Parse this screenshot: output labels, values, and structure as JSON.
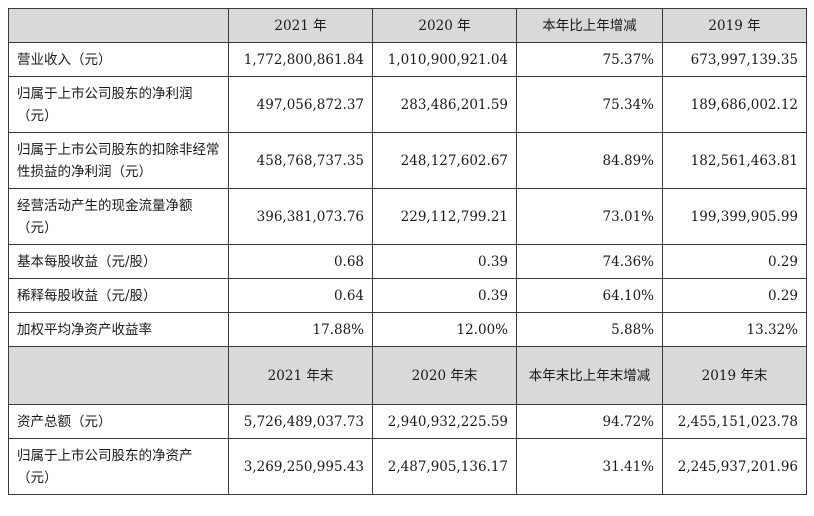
{
  "header1": [
    "2021 年",
    "2020 年",
    "本年比上年增减",
    "2019 年"
  ],
  "rows1": [
    {
      "label": "营业收入（元）",
      "values": [
        "1,772,800,861.84",
        "1,010,900,921.04",
        "75.37%",
        "673,997,139.35"
      ]
    },
    {
      "label": "归属于上市公司股东的净利润（元）",
      "values": [
        "497,056,872.37",
        "283,486,201.59",
        "75.34%",
        "189,686,002.12"
      ]
    },
    {
      "label": "归属于上市公司股东的扣除非经常性损益的净利润（元）",
      "values": [
        "458,768,737.35",
        "248,127,602.67",
        "84.89%",
        "182,561,463.81"
      ]
    },
    {
      "label": "经营活动产生的现金流量净额（元）",
      "values": [
        "396,381,073.76",
        "229,112,799.21",
        "73.01%",
        "199,399,905.99"
      ]
    },
    {
      "label": "基本每股收益（元/股）",
      "values": [
        "0.68",
        "0.39",
        "74.36%",
        "0.29"
      ]
    },
    {
      "label": "稀释每股收益（元/股）",
      "values": [
        "0.64",
        "0.39",
        "64.10%",
        "0.29"
      ]
    },
    {
      "label": "加权平均净资产收益率",
      "values": [
        "17.88%",
        "12.00%",
        "5.88%",
        "13.32%"
      ]
    }
  ],
  "header2": [
    "2021 年末",
    "2020 年末",
    "本年末比上年末增减",
    "2019 年末"
  ],
  "rows2": [
    {
      "label": "资产总额（元）",
      "values": [
        "5,726,489,037.73",
        "2,940,932,225.59",
        "94.72%",
        "2,455,151,023.78"
      ]
    },
    {
      "label": "归属于上市公司股东的净资产（元）",
      "values": [
        "3,269,250,995.43",
        "2,487,905,136.17",
        "31.41%",
        "2,245,937,201.96"
      ]
    }
  ]
}
